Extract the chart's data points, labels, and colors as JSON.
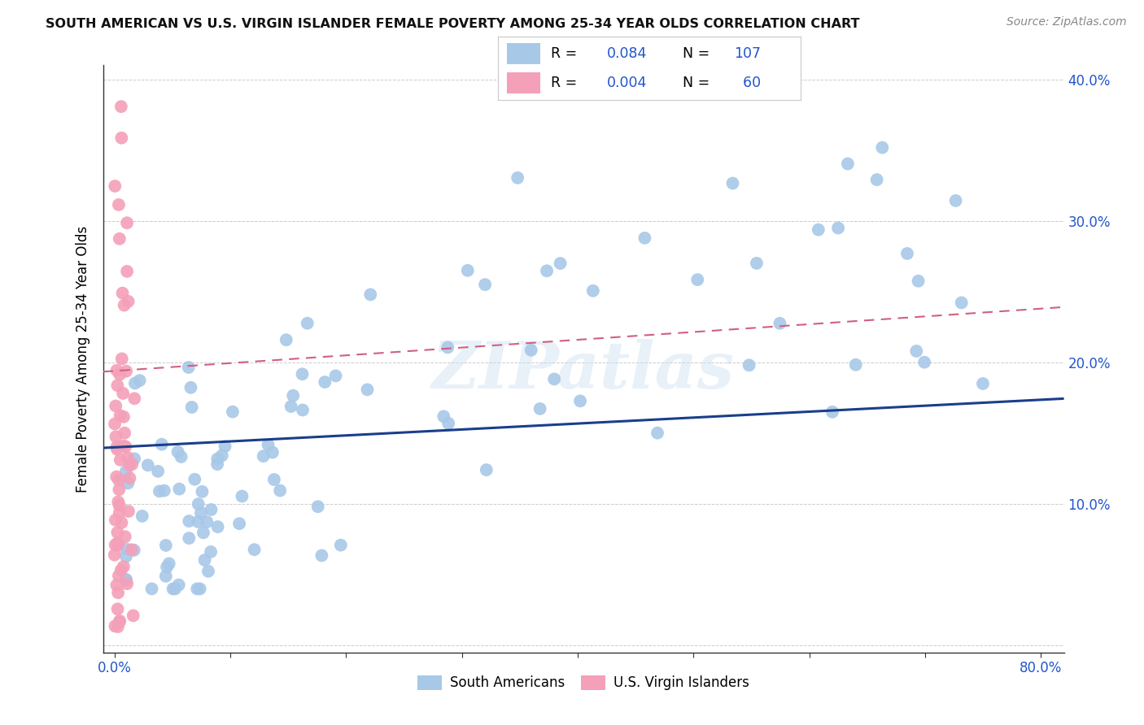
{
  "title": "SOUTH AMERICAN VS U.S. VIRGIN ISLANDER FEMALE POVERTY AMONG 25-34 YEAR OLDS CORRELATION CHART",
  "source": "Source: ZipAtlas.com",
  "ylabel": "Female Poverty Among 25-34 Year Olds",
  "xlim": [
    0,
    0.8
  ],
  "ylim": [
    0,
    0.4
  ],
  "xtick_positions": [
    0.0,
    0.1,
    0.2,
    0.3,
    0.4,
    0.5,
    0.6,
    0.7,
    0.8
  ],
  "xticklabels": [
    "0.0%",
    "",
    "",
    "",
    "",
    "",
    "",
    "",
    "80.0%"
  ],
  "ytick_positions": [
    0.0,
    0.1,
    0.2,
    0.3,
    0.4
  ],
  "yticklabels_right": [
    "",
    "10.0%",
    "20.0%",
    "30.0%",
    "40.0%"
  ],
  "blue_color": "#a8c8e8",
  "blue_line_color": "#1a3e8c",
  "pink_color": "#f4a0b8",
  "pink_line_color": "#d06080",
  "blue_R": 0.084,
  "blue_N": 107,
  "pink_R": 0.004,
  "pink_N": 60,
  "watermark": "ZIPatlas",
  "legend_label_blue": "South Americans",
  "legend_label_pink": "U.S. Virgin Islanders",
  "legend_text_color": "#2255cc",
  "title_color": "#111111",
  "source_color": "#888888",
  "grid_color": "#cccccc",
  "axis_color": "#333333"
}
